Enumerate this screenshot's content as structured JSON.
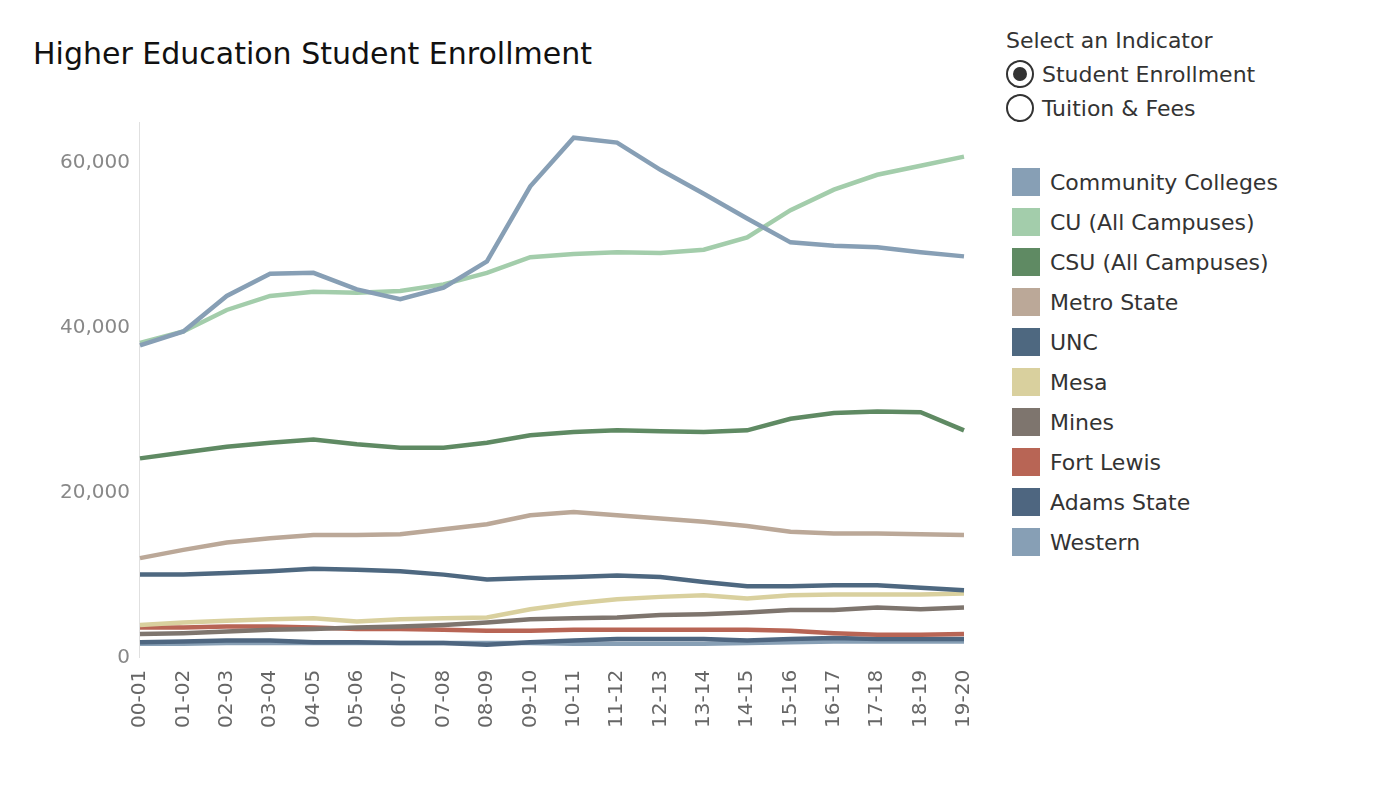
{
  "chart_data": {
    "type": "line",
    "title": "Higher Education Student Enrollment",
    "categories": [
      "00-01",
      "01-02",
      "02-03",
      "03-04",
      "04-05",
      "05-06",
      "06-07",
      "07-08",
      "08-09",
      "09-10",
      "10-11",
      "11-12",
      "12-13",
      "13-14",
      "14-15",
      "15-16",
      "16-17",
      "17-18",
      "18-19",
      "19-20"
    ],
    "series": [
      {
        "name": "Community Colleges",
        "color": "#879fb5",
        "values": [
          37900,
          39600,
          43900,
          46600,
          46700,
          44700,
          43500,
          44900,
          48100,
          57200,
          63100,
          62500,
          59200,
          56300,
          53300,
          50400,
          50000,
          49800,
          49200,
          48700
        ]
      },
      {
        "name": "CU (All Campuses)",
        "color": "#a3cdab",
        "values": [
          38200,
          39600,
          42200,
          43900,
          44400,
          44300,
          44500,
          45300,
          46700,
          48600,
          49000,
          49200,
          49100,
          49500,
          51000,
          54300,
          56800,
          58600,
          59700,
          60800
        ]
      },
      {
        "name": "CSU (All Campuses)",
        "color": "#5f8a63",
        "values": [
          24200,
          24900,
          25600,
          26100,
          26500,
          25900,
          25500,
          25500,
          26100,
          27000,
          27400,
          27600,
          27500,
          27400,
          27600,
          29000,
          29700,
          29900,
          29800,
          27600
        ]
      },
      {
        "name": "Metro State",
        "color": "#bba898",
        "values": [
          12100,
          13100,
          14000,
          14500,
          14900,
          14900,
          15000,
          15600,
          16200,
          17300,
          17700,
          17300,
          16900,
          16500,
          16000,
          15300,
          15100,
          15100,
          15000,
          14900
        ]
      },
      {
        "name": "UNC",
        "color": "#4e6880",
        "values": [
          10100,
          10100,
          10300,
          10500,
          10800,
          10700,
          10500,
          10100,
          9500,
          9700,
          9800,
          10000,
          9800,
          9200,
          8700,
          8700,
          8800,
          8800,
          8500,
          8200
        ]
      },
      {
        "name": "Mesa",
        "color": "#d9d09e",
        "values": [
          4000,
          4300,
          4500,
          4700,
          4800,
          4400,
          4700,
          4800,
          4900,
          5900,
          6600,
          7100,
          7400,
          7600,
          7200,
          7600,
          7700,
          7700,
          7700,
          7800
        ]
      },
      {
        "name": "Mines",
        "color": "#7e756e",
        "values": [
          2900,
          3000,
          3200,
          3400,
          3500,
          3700,
          3800,
          4000,
          4300,
          4700,
          4800,
          4900,
          5200,
          5300,
          5500,
          5800,
          5800,
          6100,
          5900,
          6100
        ]
      },
      {
        "name": "Fort Lewis",
        "color": "#b86555",
        "values": [
          3700,
          3700,
          3800,
          3800,
          3700,
          3500,
          3500,
          3400,
          3300,
          3300,
          3400,
          3400,
          3400,
          3400,
          3400,
          3300,
          3000,
          2800,
          2800,
          2900
        ]
      },
      {
        "name": "Adams State",
        "color": "#4e6680",
        "values": [
          1900,
          2000,
          2100,
          2100,
          1900,
          1900,
          1800,
          1800,
          1600,
          1900,
          2100,
          2300,
          2300,
          2300,
          2100,
          2300,
          2400,
          2300,
          2300,
          2300
        ]
      },
      {
        "name": "Western",
        "color": "#879fb5",
        "values": [
          1700,
          1700,
          1800,
          1800,
          1800,
          1800,
          1800,
          1800,
          1800,
          1800,
          1700,
          1700,
          1700,
          1700,
          1800,
          1900,
          2000,
          2000,
          2000,
          2000
        ]
      }
    ],
    "ylim": [
      0,
      65000
    ],
    "yticks": [
      0,
      {
        "value": 20000,
        "label": "20,000"
      },
      {
        "value": 40000,
        "label": "40,000"
      },
      {
        "value": 60000,
        "label": "60,000"
      }
    ],
    "grid": false,
    "legend": "right"
  },
  "selector": {
    "title": "Select an Indicator",
    "options": [
      "Student Enrollment",
      "Tuition & Fees"
    ],
    "selected": "Student Enrollment"
  }
}
